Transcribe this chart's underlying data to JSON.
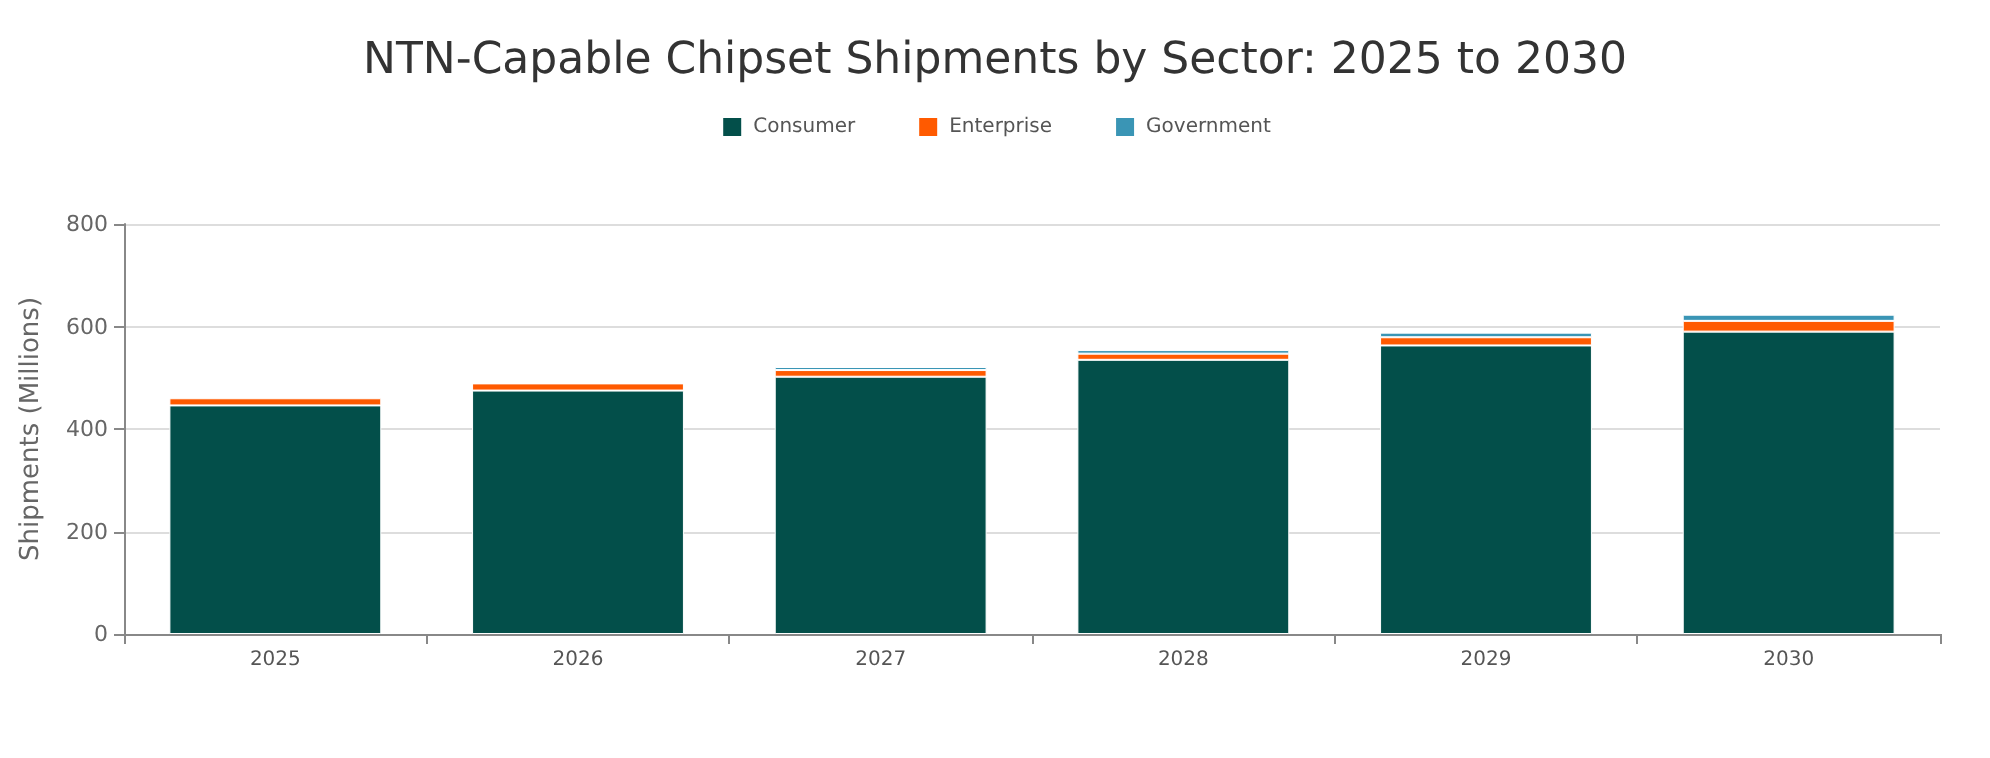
{
  "chart_data": {
    "type": "bar",
    "title": "NTN-Capable Chipset Shipments by Sector: 2025 to 2030",
    "categories": [
      "2025",
      "2026",
      "2027",
      "2028",
      "2029",
      "2030"
    ],
    "series": [
      {
        "name": "Consumer",
        "color": "#034f4a",
        "values": [
          446,
          475,
          502,
          535,
          563,
          590
        ]
      },
      {
        "name": "Enterprise",
        "color": "#ff5a00",
        "values": [
          14,
          14,
          13,
          12,
          16,
          21
        ]
      },
      {
        "name": "Government",
        "color": "#3a95b5",
        "values": [
          null,
          null,
          6,
          7,
          9,
          12
        ]
      }
    ],
    "stacked": true,
    "ylabel": "Shipments (Millions)",
    "ylim": [
      0,
      800
    ],
    "yticks": [
      0,
      200,
      400,
      600,
      800
    ],
    "grid": "y",
    "legend": "top",
    "marker": "square"
  }
}
